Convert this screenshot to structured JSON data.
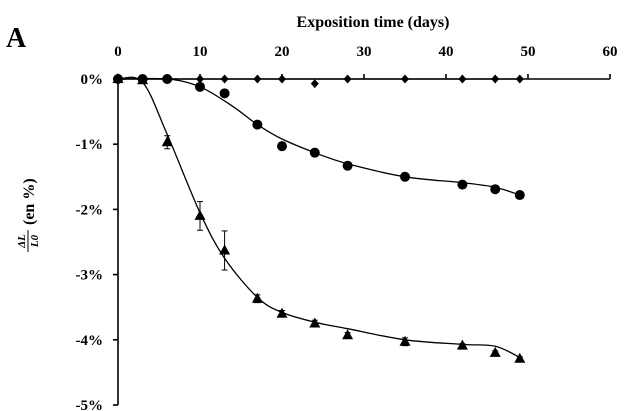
{
  "chart_data": {
    "type": "scatter",
    "panel_label": "A",
    "title": "",
    "xlabel": "Exposition time (days)",
    "ylabel": {
      "numerator": "ΔL",
      "denominator": "L0",
      "suffix": "(en %)"
    },
    "xlim": [
      0,
      60
    ],
    "ylim": [
      -5,
      0
    ],
    "x_ticks": [
      0,
      10,
      20,
      30,
      40,
      50,
      60
    ],
    "x_tick_labels": [
      "0",
      "10",
      "20",
      "30",
      "40",
      "50",
      "60"
    ],
    "y_ticks": [
      0,
      -1,
      -2,
      -3,
      -4,
      -5
    ],
    "y_tick_labels": [
      "0%",
      "-1%",
      "-2%",
      "-3%",
      "-4%",
      "-5%"
    ],
    "x_axis_position": "top",
    "grid": false,
    "legend": "none",
    "series": [
      {
        "marker": "diamond",
        "x": [
          0,
          3,
          6,
          10,
          13,
          17,
          20,
          24,
          28,
          35,
          42,
          46,
          49
        ],
        "y": [
          0,
          0,
          0,
          0,
          0,
          0,
          0,
          -0.07,
          0,
          0,
          0,
          0,
          0
        ],
        "trend": [
          [
            0,
            0
          ],
          [
            49,
            0
          ]
        ]
      },
      {
        "marker": "circle",
        "x": [
          0,
          3,
          6,
          10,
          13,
          17,
          20,
          24,
          28,
          35,
          42,
          46,
          49
        ],
        "y": [
          0,
          0,
          0,
          -0.12,
          -0.22,
          -0.7,
          -1.03,
          -1.13,
          -1.33,
          -1.5,
          -1.62,
          -1.69,
          -1.78
        ],
        "trend": [
          [
            0,
            0
          ],
          [
            6,
            0
          ],
          [
            10,
            -0.12
          ],
          [
            14,
            -0.42
          ],
          [
            17,
            -0.7
          ],
          [
            20,
            -0.92
          ],
          [
            24,
            -1.13
          ],
          [
            28,
            -1.3
          ],
          [
            35,
            -1.5
          ],
          [
            42,
            -1.59
          ],
          [
            46,
            -1.66
          ],
          [
            49,
            -1.78
          ]
        ]
      },
      {
        "marker": "triangle",
        "x": [
          0,
          3,
          6,
          10,
          13,
          17,
          20,
          24,
          28,
          35,
          42,
          46,
          49
        ],
        "y": [
          0,
          -0.02,
          -0.97,
          -2.1,
          -2.63,
          -3.37,
          -3.6,
          -3.75,
          -3.93,
          -4.03,
          -4.09,
          -4.2,
          -4.29
        ],
        "error": [
          0,
          0,
          0.1,
          0.22,
          0.3,
          0.06,
          0.05,
          0.05,
          0.04,
          0.06,
          0.03,
          0.03,
          0.03
        ],
        "trend": [
          [
            0,
            0
          ],
          [
            3,
            -0.05
          ],
          [
            6,
            -0.85
          ],
          [
            10,
            -2.05
          ],
          [
            13,
            -2.75
          ],
          [
            17,
            -3.35
          ],
          [
            20,
            -3.58
          ],
          [
            24,
            -3.73
          ],
          [
            28,
            -3.83
          ],
          [
            35,
            -4.0
          ],
          [
            42,
            -4.07
          ],
          [
            46,
            -4.1
          ],
          [
            49,
            -4.27
          ]
        ]
      }
    ]
  }
}
